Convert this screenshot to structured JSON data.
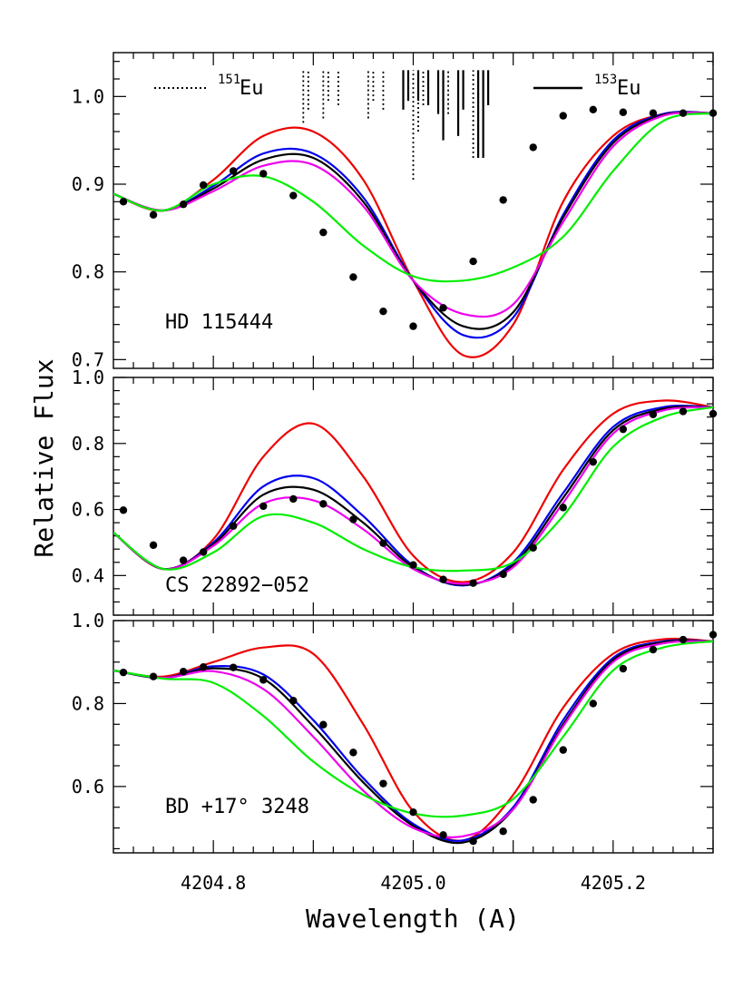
{
  "chart_data": {
    "type": "line",
    "xlabel": "Wavelength (A)",
    "ylabel": "Relative Flux",
    "xlim": [
      4204.7,
      4205.3
    ],
    "x_ticks_labeled": [
      4204.8,
      4205.0,
      4205.2
    ],
    "x_tick_labels": [
      "4204.8",
      "4205.0",
      "4205.2"
    ],
    "curve_colors": [
      "#ee0000",
      "#0000ee",
      "#000000",
      "#ee00ee",
      "#00ee00"
    ],
    "isotope_legend": {
      "eu151": {
        "mass": "151",
        "elem": "Eu",
        "style": "dotted"
      },
      "eu153": {
        "mass": "153",
        "elem": "Eu",
        "style": "solid"
      }
    },
    "isotope_lines": {
      "eu151": [
        [
          4204.89,
          0.97,
          1.03
        ],
        [
          4204.895,
          0.985,
          1.03
        ],
        [
          4204.91,
          0.975,
          1.03
        ],
        [
          4204.915,
          0.995,
          1.03
        ],
        [
          4204.925,
          0.99,
          1.03
        ],
        [
          4204.955,
          0.975,
          1.03
        ],
        [
          4204.96,
          0.995,
          1.03
        ],
        [
          4204.97,
          0.985,
          1.03
        ],
        [
          4205.0,
          0.905,
          1.03
        ],
        [
          4205.005,
          0.96,
          1.03
        ],
        [
          4205.01,
          0.99,
          1.03
        ],
        [
          4205.035,
          0.98,
          1.03
        ],
        [
          4205.06,
          0.93,
          1.03
        ],
        [
          4205.065,
          0.96,
          1.03
        ]
      ],
      "eu153": [
        [
          4204.99,
          0.985,
          1.03
        ],
        [
          4204.995,
          0.995,
          1.03
        ],
        [
          4205.005,
          0.995,
          1.03
        ],
        [
          4205.015,
          0.99,
          1.03
        ],
        [
          4205.025,
          0.98,
          1.03
        ],
        [
          4205.03,
          0.95,
          1.03
        ],
        [
          4205.045,
          0.955,
          1.03
        ],
        [
          4205.05,
          0.985,
          1.03
        ],
        [
          4205.065,
          0.93,
          1.03
        ],
        [
          4205.07,
          0.93,
          1.03
        ],
        [
          4205.075,
          0.99,
          1.03
        ]
      ]
    },
    "panels": [
      {
        "label": "HD 115444",
        "ylim": [
          0.69,
          1.05
        ],
        "y_ticks_labeled": [
          0.7,
          0.8,
          0.9,
          1.0
        ],
        "y_tick_labels": [
          "0.7",
          "0.8",
          "0.9",
          "1.0"
        ],
        "y_minor_step": 0.02,
        "observed": {
          "x": [
            4204.71,
            4204.74,
            4204.77,
            4204.79,
            4204.82,
            4204.85,
            4204.88,
            4204.91,
            4204.94,
            4204.97,
            4205.0,
            4205.03,
            4205.06,
            4205.09,
            4205.12,
            4205.15,
            4205.18,
            4205.21,
            4205.24,
            4205.27,
            4205.3
          ],
          "y": [
            0.88,
            0.865,
            0.877,
            0.899,
            0.915,
            0.912,
            0.887,
            0.845,
            0.794,
            0.755,
            0.738,
            0.759,
            0.812,
            0.882,
            0.942,
            0.978,
            0.985,
            0.982,
            0.981,
            0.981,
            0.981
          ]
        },
        "series": [
          {
            "x": [
              4204.7,
              4204.75,
              4204.8,
              4204.85,
              4204.9,
              4204.95,
              4205.0,
              4205.05,
              4205.1,
              4205.15,
              4205.2,
              4205.25,
              4205.3
            ],
            "y": [
              0.889,
              0.87,
              0.905,
              0.955,
              0.96,
              0.905,
              0.79,
              0.705,
              0.74,
              0.88,
              0.955,
              0.98,
              0.981
            ]
          },
          {
            "x": [
              4204.7,
              4204.75,
              4204.8,
              4204.85,
              4204.9,
              4204.95,
              4205.0,
              4205.05,
              4205.1,
              4205.15,
              4205.2,
              4205.25,
              4205.3
            ],
            "y": [
              0.889,
              0.87,
              0.898,
              0.935,
              0.935,
              0.885,
              0.79,
              0.728,
              0.748,
              0.865,
              0.95,
              0.98,
              0.981
            ]
          },
          {
            "x": [
              4204.7,
              4204.75,
              4204.8,
              4204.85,
              4204.9,
              4204.95,
              4205.0,
              4205.05,
              4205.1,
              4205.15,
              4205.2,
              4205.25,
              4205.3
            ],
            "y": [
              0.889,
              0.87,
              0.895,
              0.928,
              0.93,
              0.88,
              0.79,
              0.738,
              0.754,
              0.862,
              0.947,
              0.979,
              0.981
            ]
          },
          {
            "x": [
              4204.7,
              4204.75,
              4204.8,
              4204.85,
              4204.9,
              4204.95,
              4205.0,
              4205.05,
              4205.1,
              4205.15,
              4205.2,
              4205.25,
              4205.3
            ],
            "y": [
              0.889,
              0.87,
              0.892,
              0.921,
              0.922,
              0.875,
              0.79,
              0.752,
              0.763,
              0.857,
              0.943,
              0.978,
              0.981
            ]
          },
          {
            "x": [
              4204.7,
              4204.75,
              4204.8,
              4204.85,
              4204.9,
              4204.95,
              4205.0,
              4205.05,
              4205.1,
              4205.15,
              4205.2,
              4205.25,
              4205.3
            ],
            "y": [
              0.889,
              0.87,
              0.9,
              0.909,
              0.88,
              0.83,
              0.795,
              0.79,
              0.805,
              0.84,
              0.915,
              0.972,
              0.981
            ]
          }
        ]
      },
      {
        "label": "CS 22892−052",
        "ylim": [
          0.28,
          1.0
        ],
        "y_ticks_labeled": [
          0.4,
          0.6,
          0.8,
          1.0
        ],
        "y_tick_labels": [
          "0.4",
          "0.6",
          "0.8",
          "1.0"
        ],
        "y_minor_step": 0.04,
        "observed": {
          "x": [
            4204.71,
            4204.74,
            4204.77,
            4204.79,
            4204.82,
            4204.85,
            4204.88,
            4204.91,
            4204.94,
            4204.97,
            4205.0,
            4205.03,
            4205.06,
            4205.09,
            4205.12,
            4205.15,
            4205.18,
            4205.21,
            4205.24,
            4205.27,
            4205.3
          ],
          "y": [
            0.598,
            0.492,
            0.446,
            0.471,
            0.55,
            0.61,
            0.632,
            0.617,
            0.57,
            0.498,
            0.432,
            0.388,
            0.377,
            0.404,
            0.484,
            0.606,
            0.744,
            0.843,
            0.888,
            0.897,
            0.89
          ]
        },
        "series": [
          {
            "x": [
              4204.7,
              4204.75,
              4204.8,
              4204.85,
              4204.9,
              4204.95,
              4205.0,
              4205.05,
              4205.1,
              4205.15,
              4205.2,
              4205.25,
              4205.3
            ],
            "y": [
              0.53,
              0.42,
              0.51,
              0.76,
              0.86,
              0.7,
              0.46,
              0.38,
              0.47,
              0.72,
              0.89,
              0.93,
              0.91
            ]
          },
          {
            "x": [
              4204.7,
              4204.75,
              4204.8,
              4204.85,
              4204.9,
              4204.95,
              4205.0,
              4205.05,
              4205.1,
              4205.15,
              4205.2,
              4205.25,
              4205.3
            ],
            "y": [
              0.53,
              0.42,
              0.5,
              0.67,
              0.695,
              0.58,
              0.43,
              0.37,
              0.44,
              0.65,
              0.85,
              0.91,
              0.91
            ]
          },
          {
            "x": [
              4204.7,
              4204.75,
              4204.8,
              4204.85,
              4204.9,
              4204.95,
              4205.0,
              4205.05,
              4205.1,
              4205.15,
              4205.2,
              4205.25,
              4205.3
            ],
            "y": [
              0.53,
              0.42,
              0.495,
              0.645,
              0.66,
              0.56,
              0.425,
              0.372,
              0.432,
              0.635,
              0.84,
              0.905,
              0.91
            ]
          },
          {
            "x": [
              4204.7,
              4204.75,
              4204.8,
              4204.85,
              4204.9,
              4204.95,
              4205.0,
              4205.05,
              4205.1,
              4205.15,
              4205.2,
              4205.25,
              4205.3
            ],
            "y": [
              0.53,
              0.42,
              0.49,
              0.618,
              0.628,
              0.54,
              0.42,
              0.375,
              0.425,
              0.62,
              0.83,
              0.9,
              0.91
            ]
          },
          {
            "x": [
              4204.7,
              4204.75,
              4204.8,
              4204.85,
              4204.9,
              4204.95,
              4205.0,
              4205.05,
              4205.1,
              4205.15,
              4205.2,
              4205.25,
              4205.3
            ],
            "y": [
              0.53,
              0.42,
              0.47,
              0.58,
              0.56,
              0.48,
              0.425,
              0.415,
              0.44,
              0.58,
              0.79,
              0.88,
              0.91
            ]
          }
        ]
      },
      {
        "label": "BD +17° 3248",
        "ylim": [
          0.44,
          1.0
        ],
        "y_ticks_labeled": [
          0.6,
          0.8,
          1.0
        ],
        "y_tick_labels": [
          "0.6",
          "0.8",
          "1.0"
        ],
        "y_minor_step": 0.05,
        "observed": {
          "x": [
            4204.71,
            4204.74,
            4204.77,
            4204.79,
            4204.82,
            4204.85,
            4204.88,
            4204.91,
            4204.94,
            4204.97,
            4205.0,
            4205.03,
            4205.06,
            4205.09,
            4205.12,
            4205.15,
            4205.18,
            4205.21,
            4205.24,
            4205.27,
            4205.3
          ],
          "y": [
            0.875,
            0.865,
            0.877,
            0.888,
            0.887,
            0.857,
            0.807,
            0.749,
            0.682,
            0.607,
            0.538,
            0.483,
            0.468,
            0.492,
            0.568,
            0.688,
            0.8,
            0.884,
            0.93,
            0.954,
            0.966
          ]
        },
        "series": [
          {
            "x": [
              4204.7,
              4204.75,
              4204.8,
              4204.85,
              4204.9,
              4204.95,
              4205.0,
              4205.05,
              4205.1,
              4205.15,
              4205.2,
              4205.25,
              4205.3
            ],
            "y": [
              0.88,
              0.865,
              0.9,
              0.935,
              0.92,
              0.75,
              0.54,
              0.47,
              0.58,
              0.79,
              0.92,
              0.955,
              0.95
            ]
          },
          {
            "x": [
              4204.7,
              4204.75,
              4204.8,
              4204.85,
              4204.9,
              4204.95,
              4205.0,
              4205.05,
              4205.1,
              4205.15,
              4205.2,
              4205.25,
              4205.3
            ],
            "y": [
              0.88,
              0.862,
              0.89,
              0.87,
              0.76,
              0.62,
              0.51,
              0.47,
              0.55,
              0.76,
              0.91,
              0.95,
              0.95
            ]
          },
          {
            "x": [
              4204.7,
              4204.75,
              4204.8,
              4204.85,
              4204.9,
              4204.95,
              4205.0,
              4205.05,
              4205.1,
              4205.15,
              4205.2,
              4205.25,
              4205.3
            ],
            "y": [
              0.88,
              0.862,
              0.885,
              0.86,
              0.745,
              0.61,
              0.505,
              0.465,
              0.545,
              0.75,
              0.905,
              0.948,
              0.95
            ]
          },
          {
            "x": [
              4204.7,
              4204.75,
              4204.8,
              4204.85,
              4204.9,
              4204.95,
              4205.0,
              4205.05,
              4205.1,
              4205.15,
              4205.2,
              4205.25,
              4205.3
            ],
            "y": [
              0.88,
              0.862,
              0.878,
              0.835,
              0.72,
              0.59,
              0.5,
              0.48,
              0.545,
              0.745,
              0.9,
              0.945,
              0.95
            ]
          },
          {
            "x": [
              4204.7,
              4204.75,
              4204.8,
              4204.85,
              4204.9,
              4204.95,
              4205.0,
              4205.05,
              4205.1,
              4205.15,
              4205.2,
              4205.25,
              4205.3
            ],
            "y": [
              0.88,
              0.86,
              0.85,
              0.77,
              0.66,
              0.58,
              0.535,
              0.53,
              0.57,
              0.72,
              0.88,
              0.935,
              0.95
            ]
          }
        ]
      }
    ]
  }
}
